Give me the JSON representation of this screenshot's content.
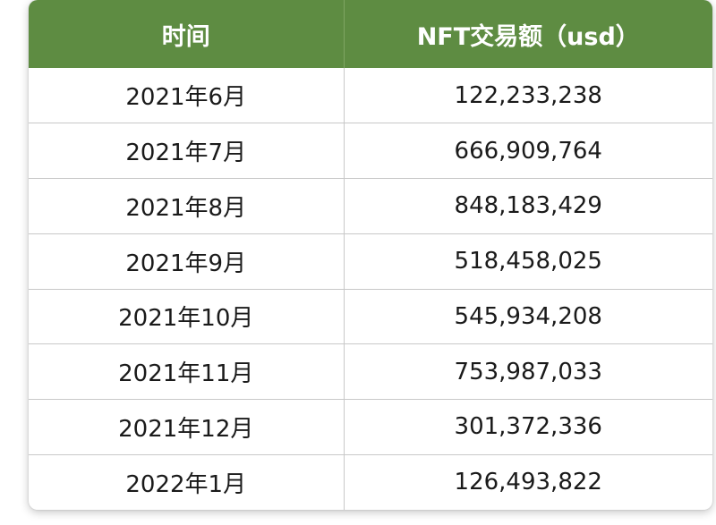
{
  "table": {
    "headers": [
      "时间",
      "NFT交易额（usd）"
    ],
    "rows": [
      {
        "time": "2021年6月",
        "amount": "122,233,238"
      },
      {
        "time": "2021年7月",
        "amount": "666,909,764"
      },
      {
        "time": "2021年8月",
        "amount": "848,183,429"
      },
      {
        "time": "2021年9月",
        "amount": "518,458,025"
      },
      {
        "time": "2021年10月",
        "amount": "545,934,208"
      },
      {
        "time": "2021年11月",
        "amount": "753,987,033"
      },
      {
        "time": "2021年12月",
        "amount": "301,372,336"
      },
      {
        "time": "2022年1月",
        "amount": "126,493,822"
      }
    ]
  },
  "colors": {
    "header_bg": "#5e8c42",
    "header_text": "#ffffff",
    "grid": "#c8c8c8"
  }
}
